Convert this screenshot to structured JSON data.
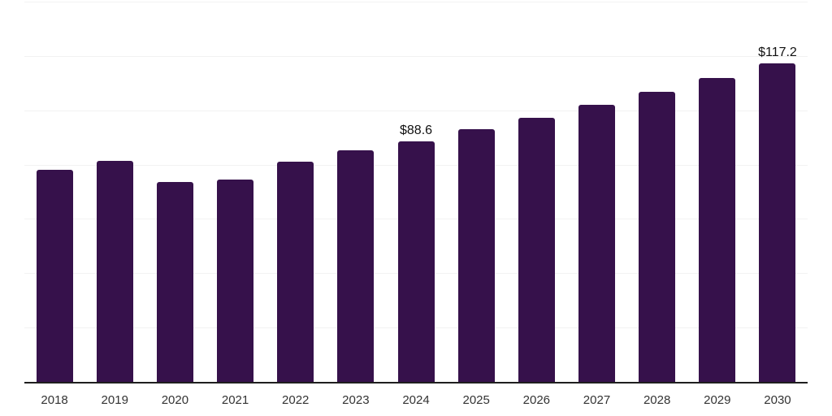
{
  "chart_data": {
    "type": "bar",
    "title": "",
    "xlabel": "",
    "ylabel": "",
    "categories": [
      "2018",
      "2019",
      "2020",
      "2021",
      "2022",
      "2023",
      "2024",
      "2025",
      "2026",
      "2027",
      "2028",
      "2029",
      "2030"
    ],
    "values": [
      78.1,
      81.4,
      73.6,
      74.6,
      81.2,
      85.2,
      88.6,
      93.0,
      97.1,
      101.9,
      106.8,
      112.0,
      117.2
    ],
    "data_labels": {
      "2024": "$88.6",
      "2030": "$117.2"
    },
    "ylim": [
      0,
      140
    ],
    "gridline_step": 20,
    "grid": true,
    "legend": "none",
    "colors": {
      "bar": "#36114b",
      "axis": "#1f1f1f",
      "gridline": "#f2f2f2",
      "value_label": "#111111",
      "tick_label": "#333333",
      "background": "#ffffff"
    }
  }
}
